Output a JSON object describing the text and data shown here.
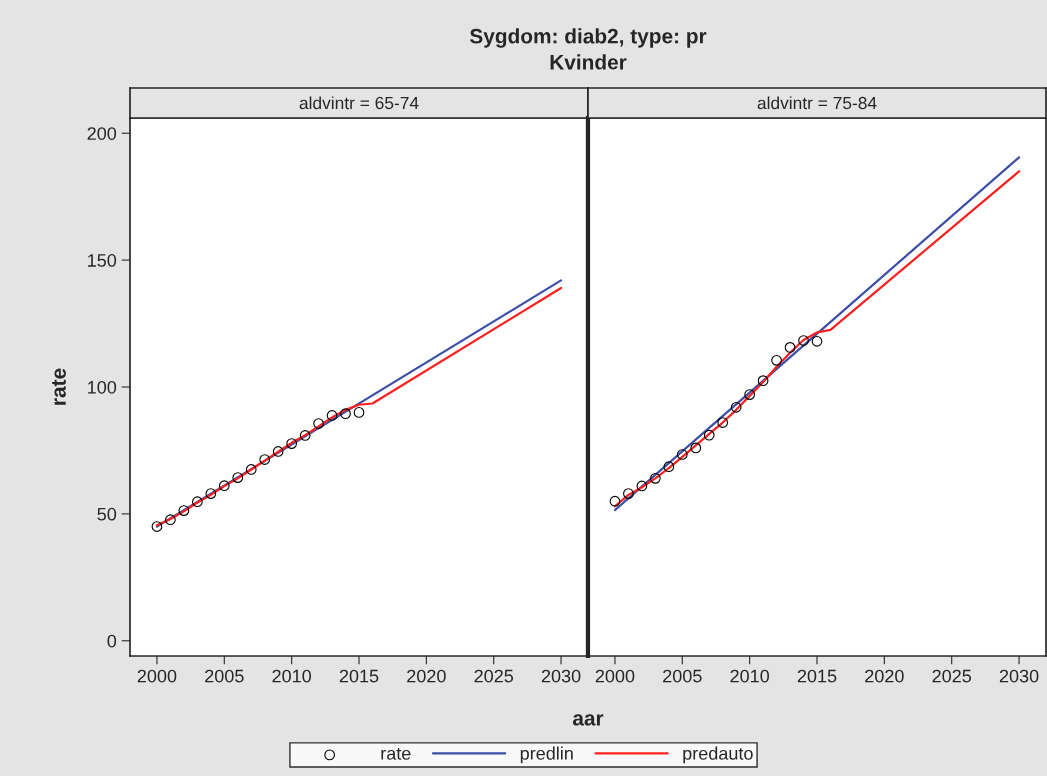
{
  "chart_data": [
    {
      "type": "line",
      "title": "aldvintr = 65-74",
      "annotations": [
        "Sygdom: diab2, type: pr",
        "Kvinder"
      ],
      "xlabel": "aar",
      "ylabel": "rate",
      "xlim": [
        1998,
        2032
      ],
      "ylim": [
        -6,
        206
      ],
      "xticks": [
        2000,
        2005,
        2010,
        2015,
        2020,
        2025,
        2030
      ],
      "yticks": [
        0,
        50,
        100,
        150,
        200
      ],
      "legend": "bottom",
      "grid": false,
      "series": [
        {
          "name": "rate",
          "type": "scatter",
          "marker": "circle",
          "color": "#000000",
          "x": [
            2000,
            2001,
            2002,
            2003,
            2004,
            2005,
            2006,
            2007,
            2008,
            2009,
            2010,
            2011,
            2012,
            2013,
            2014,
            2015
          ],
          "values": [
            45,
            47.7,
            51.3,
            54.8,
            58,
            61.1,
            64.3,
            67.5,
            71.4,
            74.6,
            77.7,
            80.9,
            85.6,
            88.8,
            89.5,
            90
          ]
        },
        {
          "name": "predlin",
          "color": "#3c4fa8",
          "x": [
            2000,
            2030
          ],
          "values": [
            45,
            142
          ]
        },
        {
          "name": "predauto",
          "color": "#ff1f1f",
          "x": [
            2000,
            2001,
            2002,
            2003,
            2004,
            2005,
            2006,
            2007,
            2008,
            2009,
            2010,
            2011,
            2012,
            2013,
            2014,
            2015,
            2016,
            2030
          ],
          "values": [
            45.5,
            48,
            51,
            54.5,
            57.5,
            61,
            64,
            67.5,
            71,
            74.5,
            78,
            81,
            84.5,
            88,
            91,
            93,
            93.5,
            139
          ]
        }
      ]
    },
    {
      "type": "line",
      "title": "aldvintr = 75-84",
      "xlim": [
        1998,
        2032
      ],
      "ylim": [
        -6,
        206
      ],
      "xticks": [
        2000,
        2005,
        2010,
        2015,
        2020,
        2025,
        2030
      ],
      "yticks": [
        0,
        50,
        100,
        150,
        200
      ],
      "tick_labels": "x",
      "grid": false,
      "series": [
        {
          "type": "scatter",
          "marker": "circle",
          "color": "#000000",
          "x": [
            2000,
            2001,
            2002,
            2003,
            2004,
            2005,
            2006,
            2007,
            2008,
            2009,
            2010,
            2011,
            2012,
            2013,
            2014,
            2015
          ],
          "values": [
            55,
            58,
            61,
            64,
            68.6,
            73.4,
            76,
            81,
            86,
            92,
            97,
            102.5,
            110.5,
            115.6,
            118.3,
            118
          ]
        },
        {
          "color": "#3c4fa8",
          "x": [
            2000,
            2030
          ],
          "values": [
            51.5,
            190.5
          ]
        },
        {
          "color": "#ff1f1f",
          "x": [
            2000,
            2001,
            2002,
            2003,
            2004,
            2005,
            2006,
            2007,
            2008,
            2009,
            2010,
            2011,
            2012,
            2013,
            2014,
            2015,
            2016,
            2030
          ],
          "values": [
            53,
            57.5,
            60.5,
            64,
            68,
            72.5,
            77,
            81.5,
            86,
            91,
            96.5,
            102,
            108,
            113.5,
            118.5,
            121.5,
            122.5,
            185
          ]
        }
      ]
    }
  ]
}
